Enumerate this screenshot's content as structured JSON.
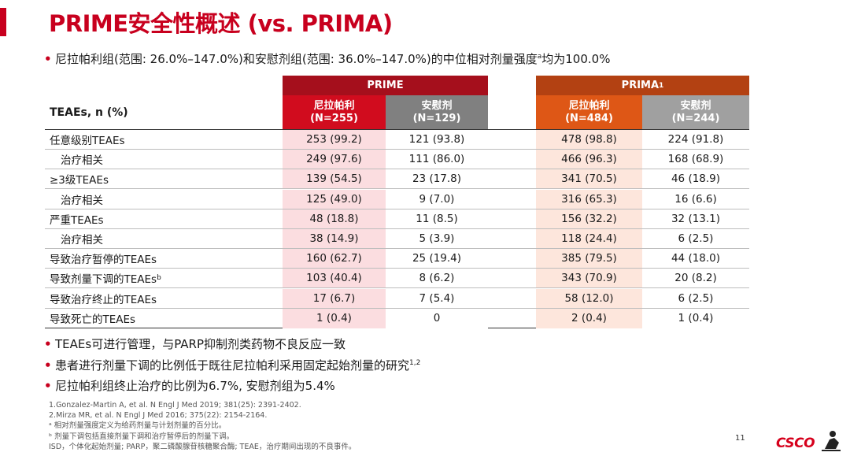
{
  "title": "PRIME安全性概述 (vs. PRIMA)",
  "intro": {
    "text_before_sup": "尼拉帕利组(范围: 26.0%–147.0%)和安慰剂组(范围: 36.0%–147.0%)的中位相对剂量强度",
    "sup": "a",
    "text_after_sup": "均为100.0%"
  },
  "table": {
    "groups": {
      "prime": "PRIME",
      "prima": "PRIMA",
      "prima_sup": "1"
    },
    "row_header": "TEAEs, n (%)",
    "columns": [
      {
        "name": "尼拉帕利",
        "n": "(N=255)"
      },
      {
        "name": "安慰剂",
        "n": "(N=129)"
      },
      {
        "name": "尼拉帕利",
        "n": "(N=484)"
      },
      {
        "name": "安慰剂",
        "n": "(N=244)"
      }
    ],
    "rows": [
      {
        "label": "任意级别TEAEs",
        "sup": "",
        "indent": false,
        "values": [
          "253 (99.2)",
          "121 (93.8)",
          "478 (98.8)",
          "224 (91.8)"
        ]
      },
      {
        "label": "治疗相关",
        "sup": "",
        "indent": true,
        "values": [
          "249 (97.6)",
          "111 (86.0)",
          "466 (96.3)",
          "168 (68.9)"
        ]
      },
      {
        "label": "≥3级TEAEs",
        "sup": "",
        "indent": false,
        "values": [
          "139 (54.5)",
          "23 (17.8)",
          "341 (70.5)",
          "46 (18.9)"
        ]
      },
      {
        "label": "治疗相关",
        "sup": "",
        "indent": true,
        "values": [
          "125 (49.0)",
          "9 (7.0)",
          "316 (65.3)",
          "16 (6.6)"
        ]
      },
      {
        "label": "严重TEAEs",
        "sup": "",
        "indent": false,
        "values": [
          "48 (18.8)",
          "11 (8.5)",
          "156 (32.2)",
          "32 (13.1)"
        ]
      },
      {
        "label": "治疗相关",
        "sup": "",
        "indent": true,
        "values": [
          "38 (14.9)",
          "5 (3.9)",
          "118 (24.4)",
          "6 (2.5)"
        ]
      },
      {
        "label": "导致治疗暂停的TEAEs",
        "sup": "",
        "indent": false,
        "values": [
          "160 (62.7)",
          "25 (19.4)",
          "385 (79.5)",
          "44 (18.0)"
        ]
      },
      {
        "label": "导致剂量下调的TEAEs",
        "sup": "b",
        "indent": false,
        "values": [
          "103 (40.4)",
          "8 (6.2)",
          "343 (70.9)",
          "20 (8.2)"
        ]
      },
      {
        "label": "导致治疗终止的TEAEs",
        "sup": "",
        "indent": false,
        "values": [
          "17 (6.7)",
          "7 (5.4)",
          "58 (12.0)",
          "6 (2.5)"
        ]
      },
      {
        "label": "导致死亡的TEAEs",
        "sup": "",
        "indent": false,
        "values": [
          "1 (0.4)",
          "0",
          "2 (0.4)",
          "1 (0.4)"
        ]
      }
    ]
  },
  "points": [
    {
      "text": "TEAEs可进行管理，与PARP抑制剂类药物不良反应一致",
      "sup": ""
    },
    {
      "text": "患者进行剂量下调的比例低于既往尼拉帕利采用固定起始剂量的研究",
      "sup": "1,2"
    },
    {
      "text": "尼拉帕利组终止治疗的比例为6.7%, 安慰剂组为5.4%",
      "sup": ""
    }
  ],
  "references": [
    "1.Gonzalez-Martin A, et al. N Engl J Med 2019; 381(25): 2391-2402.",
    "2.Mirza MR, et al. N Engl J Med 2016; 375(22): 2154-2164.",
    "ᵃ 相对剂量强度定义为给药剂量与计划剂量的百分比。",
    "ᵇ 剂量下调包括直接剂量下调和治疗暂停后的剂量下调。",
    "ISD，个体化起始剂量; PARP，聚二磷酸腺苷核糖聚合酶; TEAE，治疗期间出现的不良事件。"
  ],
  "page_number": "11",
  "logo_text": "CSCO",
  "colors": {
    "accent": "#c8001e",
    "prime_header": "#a50f1c",
    "prima_header": "#b34112",
    "niraparib_prime": "#d10c1e",
    "niraparib_prima": "#de5716",
    "placebo": "#808080"
  }
}
